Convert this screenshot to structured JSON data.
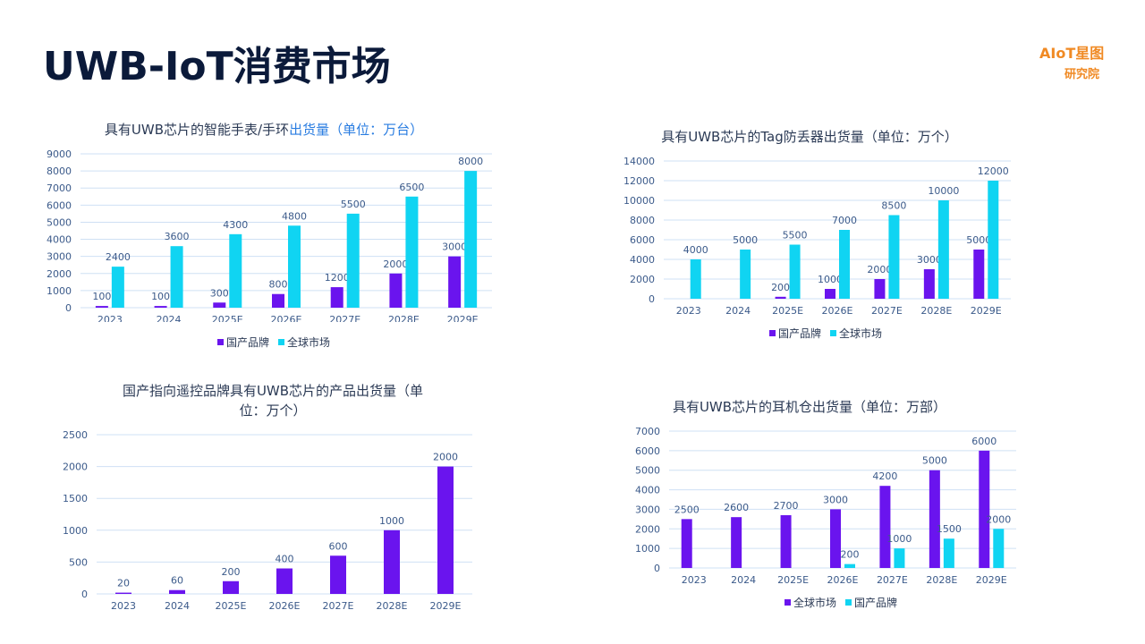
{
  "page": {
    "title": "UWB-IoT消费市场",
    "logo_main": "AIoT星图",
    "logo_sub": "研究院"
  },
  "colors": {
    "purple": "#6a14ee",
    "cyan": "#10d4f2",
    "grid": "#cfe0f4",
    "text": "#3b5a8a"
  },
  "chart_data": [
    {
      "id": "watch",
      "type": "bar",
      "title_parts": [
        "具有UWB芯片的智能手表/手环",
        "出货量（单位：万台）"
      ],
      "categories": [
        "2023",
        "2024",
        "2025E",
        "2026E",
        "2027E",
        "2028E",
        "2029E"
      ],
      "ylim": [
        0,
        9000
      ],
      "yticks": [
        "0",
        "1000",
        "2000",
        "3000",
        "4000",
        "5000",
        "6000",
        "7000",
        "8000",
        "9000"
      ],
      "series": [
        {
          "name": "国产品牌",
          "color": "#6a14ee",
          "values": [
            100,
            100,
            300,
            800,
            1200,
            2000,
            3000
          ]
        },
        {
          "name": "全球市场",
          "color": "#10d4f2",
          "values": [
            2400,
            3600,
            4300,
            4800,
            5500,
            6500,
            8000
          ]
        }
      ]
    },
    {
      "id": "tag",
      "type": "bar",
      "title_parts": [
        "具有UWB芯片的Tag防丢器出货量（单位：万个）"
      ],
      "categories": [
        "2023",
        "2024",
        "2025E",
        "2026E",
        "2027E",
        "2028E",
        "2029E"
      ],
      "ylim": [
        0,
        14000
      ],
      "yticks": [
        "0",
        "2000",
        "4000",
        "6000",
        "8000",
        "10000",
        "12000",
        "14000"
      ],
      "series": [
        {
          "name": "国产品牌",
          "color": "#6a14ee",
          "values": [
            null,
            null,
            200,
            1000,
            2000,
            3000,
            5000
          ]
        },
        {
          "name": "全球市场",
          "color": "#10d4f2",
          "values": [
            4000,
            5000,
            5500,
            7000,
            8500,
            10000,
            12000
          ]
        }
      ]
    },
    {
      "id": "remote",
      "type": "bar",
      "title_parts": [
        "国产指向遥控品牌具有UWB芯片的产品出货量（单",
        "位：万个）"
      ],
      "categories": [
        "2023",
        "2024",
        "2025E",
        "2026E",
        "2027E",
        "2028E",
        "2029E"
      ],
      "ylim": [
        0,
        2500
      ],
      "yticks": [
        "0",
        "500",
        "1000",
        "1500",
        "2000",
        "2500"
      ],
      "series": [
        {
          "name": "",
          "color": "#6a14ee",
          "values": [
            20,
            60,
            200,
            400,
            600,
            1000,
            2000
          ]
        }
      ]
    },
    {
      "id": "earbud",
      "type": "bar",
      "title_parts": [
        "具有UWB芯片的耳机仓出货量（单位：万部）"
      ],
      "categories": [
        "2023",
        "2024",
        "2025E",
        "2026E",
        "2027E",
        "2028E",
        "2029E"
      ],
      "ylim": [
        0,
        7000
      ],
      "yticks": [
        "0",
        "1000",
        "2000",
        "3000",
        "4000",
        "5000",
        "6000",
        "7000"
      ],
      "series": [
        {
          "name": "全球市场",
          "color": "#6a14ee",
          "values": [
            2500,
            2600,
            2700,
            3000,
            4200,
            5000,
            6000
          ]
        },
        {
          "name": "国产品牌",
          "color": "#10d4f2",
          "values": [
            null,
            null,
            null,
            200,
            1000,
            1500,
            2000
          ]
        }
      ]
    }
  ]
}
